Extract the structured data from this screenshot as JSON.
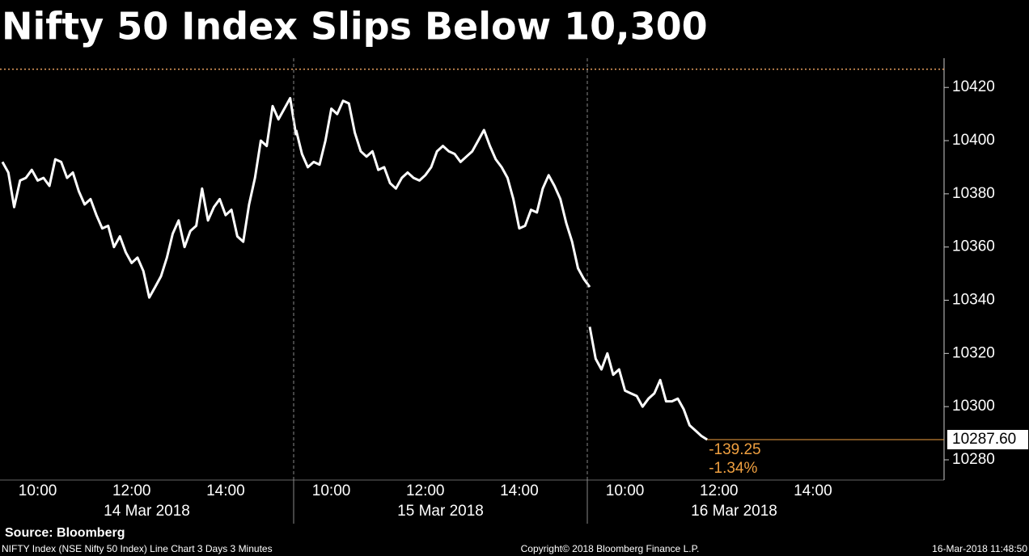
{
  "chart_data": {
    "type": "line",
    "title": "Nifty 50 Index Slips Below 10,300",
    "color": "#ffffff",
    "days": [
      {
        "label": "14 Mar 2018",
        "categories": [
          null,
          null,
          null,
          null,
          null,
          null,
          "10:00",
          null,
          null,
          null,
          null,
          null,
          null,
          null,
          null,
          null,
          null,
          null,
          null,
          null,
          null,
          null,
          "12:00",
          null,
          null,
          null,
          null,
          null,
          null,
          null,
          null,
          null,
          null,
          null,
          null,
          null,
          null,
          null,
          "14:00",
          null,
          null,
          null,
          null,
          null,
          null,
          null,
          null,
          null,
          null,
          null,
          null
        ],
        "values": [
          10392,
          10388,
          10375,
          10385,
          10386,
          10389,
          10385,
          10386,
          10383,
          10393,
          10392,
          10386,
          10388,
          10381,
          10376,
          10378,
          10372,
          10367,
          10368,
          10360,
          10364,
          10358,
          10354,
          10356,
          10351,
          10341,
          10345,
          10349,
          10356,
          10365,
          10370,
          10360,
          10366,
          10368,
          10382,
          10370,
          10375,
          10378,
          10372,
          10374,
          10364,
          10362,
          10376,
          10386,
          10400,
          10398,
          10413,
          10408,
          10412,
          10416,
          10402
        ]
      },
      {
        "label": "15 Mar 2018",
        "categories": [
          null,
          null,
          null,
          null,
          null,
          null,
          "10:00",
          null,
          null,
          null,
          null,
          null,
          null,
          null,
          null,
          null,
          null,
          null,
          null,
          null,
          null,
          null,
          "12:00",
          null,
          null,
          null,
          null,
          null,
          null,
          null,
          null,
          null,
          null,
          null,
          null,
          null,
          null,
          null,
          "14:00",
          null,
          null,
          null,
          null,
          null,
          null,
          null,
          null,
          null,
          null,
          null,
          null
        ],
        "values": [
          10404,
          10395,
          10390,
          10392,
          10391,
          10400,
          10412,
          10410,
          10415,
          10414,
          10403,
          10396,
          10394,
          10396,
          10389,
          10390,
          10384,
          10382,
          10386,
          10388,
          10386,
          10385,
          10387,
          10390,
          10396,
          10398,
          10396,
          10395,
          10392,
          10394,
          10396,
          10400,
          10404,
          10398,
          10393,
          10390,
          10386,
          10378,
          10367,
          10368,
          10374,
          10373,
          10382,
          10387,
          10383,
          10378,
          10369,
          10362,
          10352,
          10348,
          10345
        ]
      },
      {
        "label": "16 Mar 2018",
        "categories": [
          null,
          null,
          null,
          null,
          null,
          null,
          "10:00",
          null,
          null,
          null,
          null,
          null,
          null,
          null,
          null,
          null,
          null,
          null,
          null,
          null,
          null,
          null,
          "12:00",
          null,
          null,
          null,
          null,
          null,
          null,
          null,
          null,
          null,
          null,
          null,
          null,
          null,
          null,
          null,
          "14:00"
        ],
        "values": [
          10330,
          10318,
          10314,
          10320,
          10312,
          10314,
          10306,
          10305,
          10304,
          10300,
          10303,
          10305,
          10310,
          10302,
          10302,
          10303,
          10299,
          10293,
          10291,
          10289,
          10287.6,
          null,
          null,
          null,
          null,
          null,
          null,
          null,
          null,
          null,
          null,
          null,
          null,
          null,
          null,
          null,
          null,
          null,
          null
        ]
      }
    ],
    "ylim": [
      10272.4,
      10431
    ],
    "yticks": [
      10280,
      10300,
      10320,
      10340,
      10360,
      10380,
      10400,
      10420
    ],
    "reference": 10426.85,
    "reference_color": "#e8a060",
    "last": {
      "value": 10287.6,
      "value_label": "10287.60",
      "change": -139.25,
      "change_pct": -1.34,
      "change_pct_label": "-1.34%",
      "color": "#f0a040"
    },
    "source": "Source: Bloomberg",
    "footer_left": "NIFTY Index (NSE Nifty 50 Index) Line Chart 3 Days 3 Minutes",
    "footer_center": "Copyright© 2018 Bloomberg Finance L.P.",
    "footer_right": "16-Mar-2018 11:48:50"
  }
}
